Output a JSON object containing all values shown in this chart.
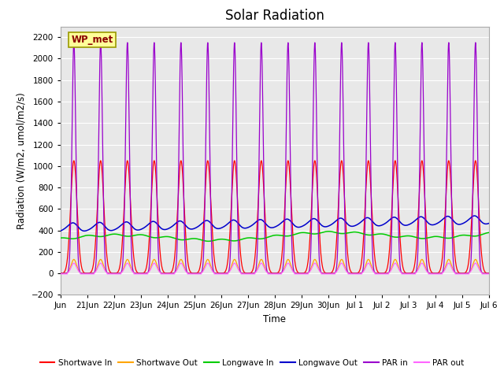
{
  "title": "Solar Radiation",
  "ylabel": "Radiation (W/m2, umol/m2/s)",
  "xlabel": "Time",
  "ylim": [
    -200,
    2300
  ],
  "yticks": [
    -200,
    0,
    200,
    400,
    600,
    800,
    1000,
    1200,
    1400,
    1600,
    1800,
    2000,
    2200
  ],
  "fig_bg_color": "#ffffff",
  "axes_bg_color": "#e8e8e8",
  "station_label": "WP_met",
  "legend_entries": [
    {
      "label": "Shortwave In",
      "color": "#ff0000"
    },
    {
      "label": "Shortwave Out",
      "color": "#ffa500"
    },
    {
      "label": "Longwave In",
      "color": "#00cc00"
    },
    {
      "label": "Longwave Out",
      "color": "#0000cc"
    },
    {
      "label": "PAR in",
      "color": "#9900cc"
    },
    {
      "label": "PAR out",
      "color": "#ff66ff"
    }
  ],
  "n_days": 16,
  "shortwave_in_peak": 1050,
  "shortwave_out_peak": 130,
  "longwave_in_base": 320,
  "longwave_out_base": 390,
  "par_in_peak": 2150,
  "par_out_peak": 95
}
